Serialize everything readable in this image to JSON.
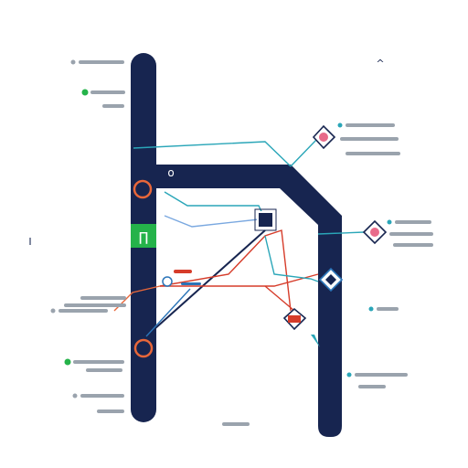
{
  "colors": {
    "bar": "#172550",
    "orange": "#e8673a",
    "green": "#25b34a",
    "teal": "#2aa6b8",
    "red": "#d63c2a",
    "blue": "#2a74b8",
    "gray": "#9aa3ad",
    "blank": "#ffffff"
  },
  "glyphs": {
    "caret": "^",
    "circle_marker": "o",
    "bracket_marker": "I",
    "green_box_symbol": "∏"
  },
  "left_legend": [
    {
      "dot": "gray"
    },
    {
      "dot": "green"
    },
    {
      "dot": "none"
    }
  ],
  "left_mid_legend": [
    {
      "dot": "none"
    },
    {
      "dot": "gray"
    }
  ],
  "left_low_legend": [
    {
      "dot": "green"
    },
    {
      "dot": "gray"
    }
  ],
  "right_legend": [
    {
      "dot": "teal"
    },
    {
      "dot": "teal"
    },
    {
      "dot": "teal"
    }
  ],
  "icons": [
    "cloud-server-node-icon",
    "cloud-server-node-icon",
    "square-node-icon",
    "diamond-node-icon",
    "database-node-icon"
  ]
}
